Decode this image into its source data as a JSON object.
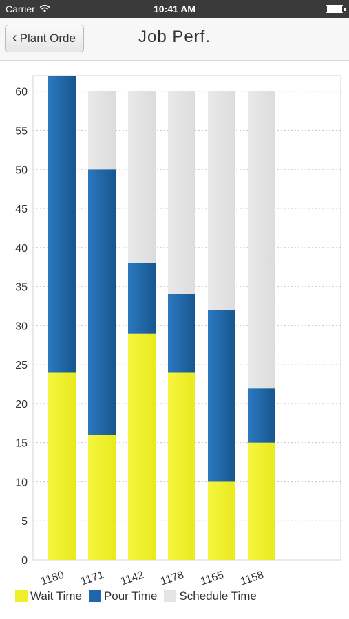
{
  "status_bar": {
    "carrier": "Carrier",
    "time": "10:41 AM"
  },
  "nav": {
    "back_label": "Plant Orde",
    "title": "Job Perf."
  },
  "colors": {
    "wait": "#f0f02a",
    "pour": "#1f67ab",
    "schedule": "#e4e4e4"
  },
  "chart_data": {
    "type": "bar",
    "stacked": true,
    "categories": [
      "1180",
      "1171",
      "1142",
      "1178",
      "1165",
      "1158"
    ],
    "series": [
      {
        "name": "Wait Time",
        "values": [
          24,
          16,
          29,
          24,
          10,
          15
        ]
      },
      {
        "name": "Pour Time",
        "values": [
          38,
          34,
          9,
          10,
          22,
          7
        ]
      },
      {
        "name": "Schedule Time",
        "values": [
          0,
          10,
          22,
          26,
          28,
          38
        ]
      }
    ],
    "ylim": [
      0,
      62
    ],
    "yticks": [
      0,
      5,
      10,
      15,
      20,
      25,
      30,
      35,
      40,
      45,
      50,
      55,
      60
    ],
    "grid": true,
    "legend": "bottom-left"
  }
}
